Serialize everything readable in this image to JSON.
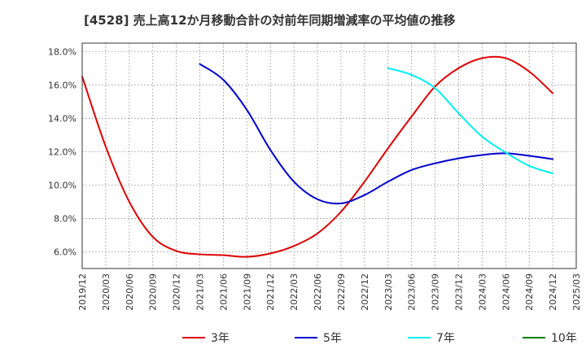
{
  "chart_data": {
    "type": "line",
    "title": "[4528]  売上高12か月移動合計の対前年同期増減率の平均値の推移",
    "xlabel": "",
    "ylabel": "",
    "x_ticks": [
      "2019/12",
      "2020/03",
      "2020/06",
      "2020/09",
      "2020/12",
      "2021/03",
      "2021/06",
      "2021/09",
      "2021/12",
      "2022/03",
      "2022/06",
      "2022/09",
      "2022/12",
      "2023/03",
      "2023/06",
      "2023/09",
      "2023/12",
      "2024/03",
      "2024/06",
      "2024/09",
      "2024/12",
      "2025/03"
    ],
    "y_ticks": [
      "6.0%",
      "8.0%",
      "10.0%",
      "12.0%",
      "14.0%",
      "16.0%",
      "18.0%"
    ],
    "ylim": [
      5.0,
      18.5
    ],
    "grid": true,
    "legend_position": "bottom",
    "series": [
      {
        "name": "3年",
        "color": "#dd0000",
        "points": [
          [
            "2019/12",
            16.5
          ],
          [
            "2020/03",
            12.3
          ],
          [
            "2020/06",
            9.0
          ],
          [
            "2020/09",
            6.9
          ],
          [
            "2020/12",
            6.05
          ],
          [
            "2021/03",
            5.85
          ],
          [
            "2021/06",
            5.8
          ],
          [
            "2021/09",
            5.7
          ],
          [
            "2021/12",
            5.9
          ],
          [
            "2022/03",
            6.35
          ],
          [
            "2022/06",
            7.1
          ],
          [
            "2022/09",
            8.4
          ],
          [
            "2022/12",
            10.2
          ],
          [
            "2023/03",
            12.2
          ],
          [
            "2023/06",
            14.1
          ],
          [
            "2023/09",
            15.9
          ],
          [
            "2023/12",
            17.0
          ],
          [
            "2024/03",
            17.6
          ],
          [
            "2024/06",
            17.6
          ],
          [
            "2024/09",
            16.8
          ],
          [
            "2024/12",
            15.5
          ]
        ]
      },
      {
        "name": "5年",
        "color": "#0000cc",
        "points": [
          [
            "2021/03",
            17.25
          ],
          [
            "2021/06",
            16.3
          ],
          [
            "2021/09",
            14.5
          ],
          [
            "2021/12",
            12.1
          ],
          [
            "2022/03",
            10.2
          ],
          [
            "2022/06",
            9.15
          ],
          [
            "2022/09",
            8.9
          ],
          [
            "2022/12",
            9.4
          ],
          [
            "2023/03",
            10.2
          ],
          [
            "2023/06",
            10.9
          ],
          [
            "2023/09",
            11.3
          ],
          [
            "2023/12",
            11.6
          ],
          [
            "2024/03",
            11.8
          ],
          [
            "2024/06",
            11.9
          ],
          [
            "2024/09",
            11.75
          ],
          [
            "2024/12",
            11.55
          ]
        ]
      },
      {
        "name": "7年",
        "color": "#00eeee",
        "points": [
          [
            "2023/03",
            17.0
          ],
          [
            "2023/06",
            16.6
          ],
          [
            "2023/09",
            15.8
          ],
          [
            "2023/12",
            14.3
          ],
          [
            "2024/03",
            12.9
          ],
          [
            "2024/06",
            11.95
          ],
          [
            "2024/09",
            11.15
          ],
          [
            "2024/12",
            10.7
          ]
        ]
      },
      {
        "name": "10年",
        "color": "#008000",
        "points": []
      }
    ]
  }
}
